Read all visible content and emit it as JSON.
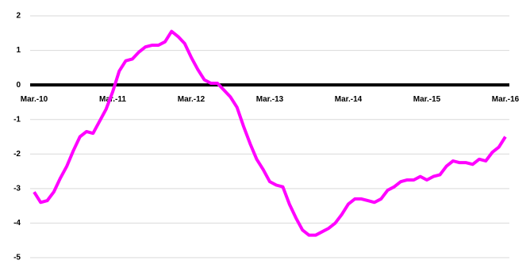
{
  "chart_data": {
    "type": "line",
    "categories": [
      "Mar.-10",
      null,
      null,
      null,
      null,
      null,
      null,
      null,
      null,
      null,
      null,
      null,
      "Mar.-11",
      null,
      null,
      null,
      null,
      null,
      null,
      null,
      null,
      null,
      null,
      null,
      "Mar.-12",
      null,
      null,
      null,
      null,
      null,
      null,
      null,
      null,
      null,
      null,
      null,
      "Mar.-13",
      null,
      null,
      null,
      null,
      null,
      null,
      null,
      null,
      null,
      null,
      null,
      "Mar.-14",
      null,
      null,
      null,
      null,
      null,
      null,
      null,
      null,
      null,
      null,
      null,
      "Mar.-15",
      null,
      null,
      null,
      null,
      null,
      null,
      null,
      null,
      null,
      null,
      null,
      "Mar.-16"
    ],
    "series": [
      {
        "color": "#ff00ff",
        "values": [
          -3.1,
          -3.4,
          -3.35,
          -3.1,
          -2.7,
          -2.35,
          -1.9,
          -1.5,
          -1.35,
          -1.4,
          -1.05,
          -0.7,
          -0.2,
          0.4,
          0.7,
          0.75,
          0.95,
          1.1,
          1.15,
          1.15,
          1.25,
          1.55,
          1.4,
          1.2,
          0.8,
          0.45,
          0.15,
          0.05,
          0.05,
          -0.15,
          -0.35,
          -0.65,
          -1.2,
          -1.7,
          -2.15,
          -2.45,
          -2.8,
          -2.9,
          -2.95,
          -3.45,
          -3.85,
          -4.2,
          -4.35,
          -4.35,
          -4.25,
          -4.15,
          -4.0,
          -3.75,
          -3.45,
          -3.3,
          -3.3,
          -3.35,
          -3.4,
          -3.3,
          -3.05,
          -2.95,
          -2.8,
          -2.75,
          -2.75,
          -2.65,
          -2.75,
          -2.65,
          -2.6,
          -2.35,
          -2.2,
          -2.25,
          -2.25,
          -2.3,
          -2.15,
          -2.2,
          -1.95,
          -1.8,
          -1.5
        ]
      }
    ],
    "ylim": [
      -5,
      2
    ],
    "yticks": [
      2,
      1,
      0,
      -1,
      -2,
      -3,
      -4,
      -5
    ],
    "grid": true
  }
}
